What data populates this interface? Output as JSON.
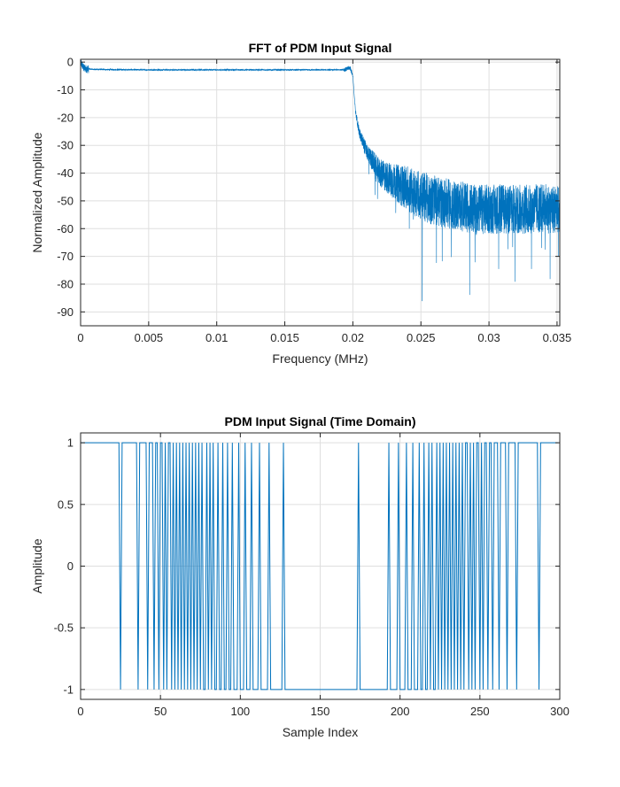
{
  "chart_data": [
    {
      "type": "line",
      "title": "FFT of PDM Input Signal",
      "xlabel": "Frequency (MHz)",
      "ylabel": "Normalized Amplitude",
      "xlim": [
        0,
        0.0352
      ],
      "ylim": [
        -95,
        1
      ],
      "xticks": [
        0,
        0.005,
        0.01,
        0.015,
        0.02,
        0.025,
        0.03,
        0.035
      ],
      "xticklabels": [
        "0",
        "0.005",
        "0.01",
        "0.015",
        "0.02",
        "0.025",
        "0.03",
        "0.035"
      ],
      "yticks": [
        0,
        -10,
        -20,
        -30,
        -40,
        -50,
        -60,
        -70,
        -80,
        -90
      ],
      "yticklabels": [
        "0",
        "-10",
        "-20",
        "-30",
        "-40",
        "-50",
        "-60",
        "-70",
        "-80",
        "-90"
      ],
      "grid": true,
      "color": "#0072bd",
      "series": [
        {
          "x": [
            0,
            0.0002,
            0.0005,
            0.001,
            0.002,
            0.005,
            0.01,
            0.015,
            0.019,
            0.0195,
            0.0198,
            0.02,
            0.0201,
            0.0202,
            0.0205,
            0.021,
            0.0215,
            0.022,
            0.023,
            0.024,
            0.025,
            0.026,
            0.027,
            0.028,
            0.029,
            0.03,
            0.031,
            0.032,
            0.033,
            0.034,
            0.035,
            0.0352
          ],
          "y": [
            0,
            -2,
            -2.5,
            -2.6,
            -2.7,
            -2.8,
            -2.8,
            -2.8,
            -2.8,
            -2.6,
            -2.0,
            -5,
            -12,
            -18,
            -26,
            -32,
            -36,
            -40,
            -43,
            -45.5,
            -48,
            -50,
            -51,
            -52,
            -53,
            -53,
            -53,
            -53,
            -53,
            -52.5,
            -53,
            -53
          ],
          "noise_band": [
            0,
            0,
            0,
            0,
            0,
            0,
            0,
            0,
            0,
            0,
            0,
            0,
            0,
            1,
            2,
            3,
            4,
            5,
            6.5,
            8,
            9,
            9,
            9,
            9,
            9,
            9,
            9,
            9,
            9,
            9,
            9,
            9
          ],
          "minimum": {
            "x": 0.0251,
            "y": -86
          }
        }
      ]
    },
    {
      "type": "line",
      "title": "PDM Input Signal (Time Domain)",
      "xlabel": "Sample Index",
      "ylabel": "Amplitude",
      "xlim": [
        0,
        300
      ],
      "ylim": [
        -1.08,
        1.08
      ],
      "xticks": [
        0,
        50,
        100,
        150,
        200,
        250,
        300
      ],
      "xticklabels": [
        "0",
        "50",
        "100",
        "150",
        "200",
        "250",
        "300"
      ],
      "yticks": [
        1,
        0.5,
        0,
        -0.5,
        -1
      ],
      "yticklabels": [
        "1",
        "0.5",
        "0",
        "-0.5",
        "-1"
      ],
      "grid": true,
      "color": "#0072bd",
      "series": [
        {
          "values": [
            1,
            1,
            1,
            1,
            1,
            1,
            1,
            1,
            1,
            1,
            1,
            1,
            1,
            1,
            1,
            1,
            1,
            1,
            1,
            1,
            1,
            1,
            1,
            1,
            1,
            -1,
            1,
            1,
            1,
            1,
            1,
            1,
            1,
            1,
            1,
            1,
            -1,
            1,
            1,
            1,
            1,
            1,
            -1,
            1,
            1,
            1,
            -1,
            1,
            1,
            -1,
            1,
            1,
            -1,
            1,
            -1,
            1,
            1,
            -1,
            1,
            -1,
            1,
            -1,
            1,
            -1,
            1,
            -1,
            1,
            -1,
            1,
            -1,
            1,
            -1,
            1,
            -1,
            1,
            -1,
            1,
            -1,
            -1,
            1,
            -1,
            1,
            -1,
            1,
            -1,
            -1,
            1,
            -1,
            -1,
            1,
            -1,
            -1,
            1,
            -1,
            -1,
            1,
            -1,
            -1,
            -1,
            1,
            -1,
            -1,
            -1,
            1,
            -1,
            -1,
            -1,
            1,
            -1,
            -1,
            -1,
            -1,
            1,
            -1,
            -1,
            -1,
            -1,
            -1,
            1,
            -1,
            -1,
            -1,
            -1,
            -1,
            -1,
            -1,
            -1,
            1,
            -1,
            -1,
            -1,
            -1,
            -1,
            -1,
            -1,
            -1,
            -1,
            -1,
            -1,
            -1,
            -1,
            -1,
            -1,
            -1,
            -1,
            -1,
            -1,
            -1,
            -1,
            -1,
            -1,
            -1,
            -1,
            -1,
            -1,
            -1,
            -1,
            -1,
            -1,
            -1,
            -1,
            -1,
            -1,
            -1,
            -1,
            -1,
            -1,
            -1,
            -1,
            -1,
            -1,
            -1,
            -1,
            -1,
            1,
            -1,
            -1,
            -1,
            -1,
            -1,
            -1,
            -1,
            -1,
            -1,
            -1,
            -1,
            -1,
            -1,
            -1,
            -1,
            -1,
            -1,
            -1,
            1,
            -1,
            -1,
            -1,
            -1,
            -1,
            1,
            -1,
            -1,
            -1,
            -1,
            1,
            -1,
            -1,
            -1,
            1,
            -1,
            -1,
            -1,
            1,
            -1,
            -1,
            1,
            -1,
            -1,
            1,
            -1,
            1,
            -1,
            -1,
            1,
            -1,
            1,
            -1,
            1,
            -1,
            1,
            -1,
            1,
            -1,
            1,
            -1,
            1,
            -1,
            1,
            -1,
            1,
            -1,
            1,
            1,
            -1,
            1,
            -1,
            1,
            -1,
            1,
            1,
            -1,
            1,
            -1,
            1,
            1,
            -1,
            1,
            1,
            -1,
            1,
            1,
            1,
            -1,
            1,
            1,
            1,
            1,
            -1,
            1,
            1,
            1,
            1,
            1,
            -1,
            1,
            1,
            1,
            1,
            1,
            1,
            1,
            1,
            1,
            1,
            1,
            1,
            1,
            -1,
            1,
            1,
            1,
            1,
            1,
            1,
            1,
            1,
            1,
            1,
            1,
            1
          ]
        }
      ]
    }
  ]
}
